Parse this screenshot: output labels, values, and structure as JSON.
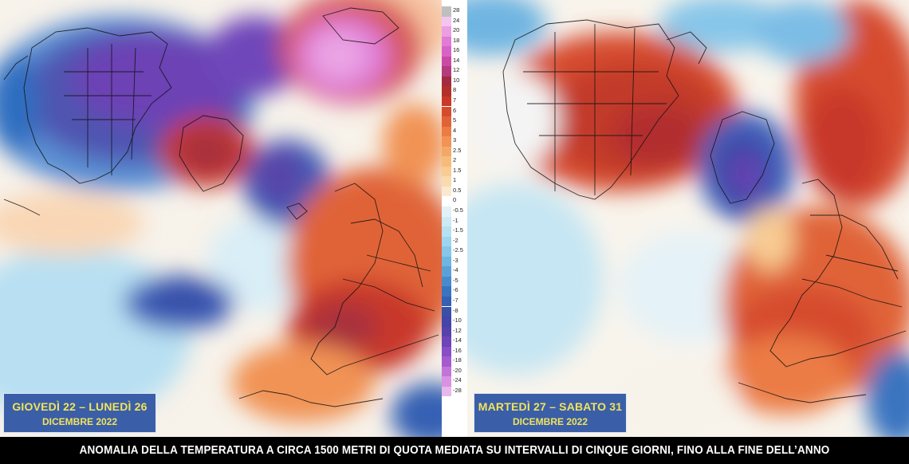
{
  "left_panel": {
    "label_line1": "GIOVEDÌ 22 – LUNEDÌ 26",
    "label_line2": "DICEMBRE 2022"
  },
  "right_panel": {
    "label_line1": "MARTEDÌ 27 – SABATO 31",
    "label_line2": "DICEMBRE 2022"
  },
  "scale": {
    "ticks": [
      "28",
      "24",
      "20",
      "18",
      "16",
      "14",
      "12",
      "10",
      "8",
      "7",
      "6",
      "5",
      "4",
      "3",
      "2.5",
      "2",
      "1.5",
      "1",
      "0.5",
      "0",
      "-0.5",
      "-1",
      "-1.5",
      "-2",
      "-2.5",
      "-3",
      "-4",
      "-5",
      "-6",
      "-7",
      "-8",
      "-10",
      "-12",
      "-14",
      "-16",
      "-18",
      "-20",
      "-24",
      "-28"
    ],
    "colors": [
      "#bfbfbf",
      "#f3c6ef",
      "#ea9fe3",
      "#e07bd6",
      "#d863c8",
      "#c94aa6",
      "#b33b7f",
      "#a32b3f",
      "#b52f2a",
      "#c8392a",
      "#d64b2d",
      "#e06337",
      "#eb7c44",
      "#f19355",
      "#f4a866",
      "#f7bb7c",
      "#f8cc93",
      "#f9dbae",
      "#fbe9cf",
      "#ffffff",
      "#e2f1f7",
      "#cde9f4",
      "#b6e1f2",
      "#9fd4ee",
      "#87c6e9",
      "#6fb5e2",
      "#5aa1d9",
      "#478bcd",
      "#3a74c0",
      "#3560b3",
      "#3850a8",
      "#4544a8",
      "#5641ad",
      "#6d44b9",
      "#874ec5",
      "#a45bcf",
      "#c374d9",
      "#d992e2",
      "#e8b7ec"
    ]
  },
  "caption": "ANOMALIA DELLA TEMPERATURA A CIRCA 1500 METRI DI QUOTA MEDIATA SU INTERVALLI DI CINQUE GIORNI, FINO ALLA FINE DELL’ANNO"
}
